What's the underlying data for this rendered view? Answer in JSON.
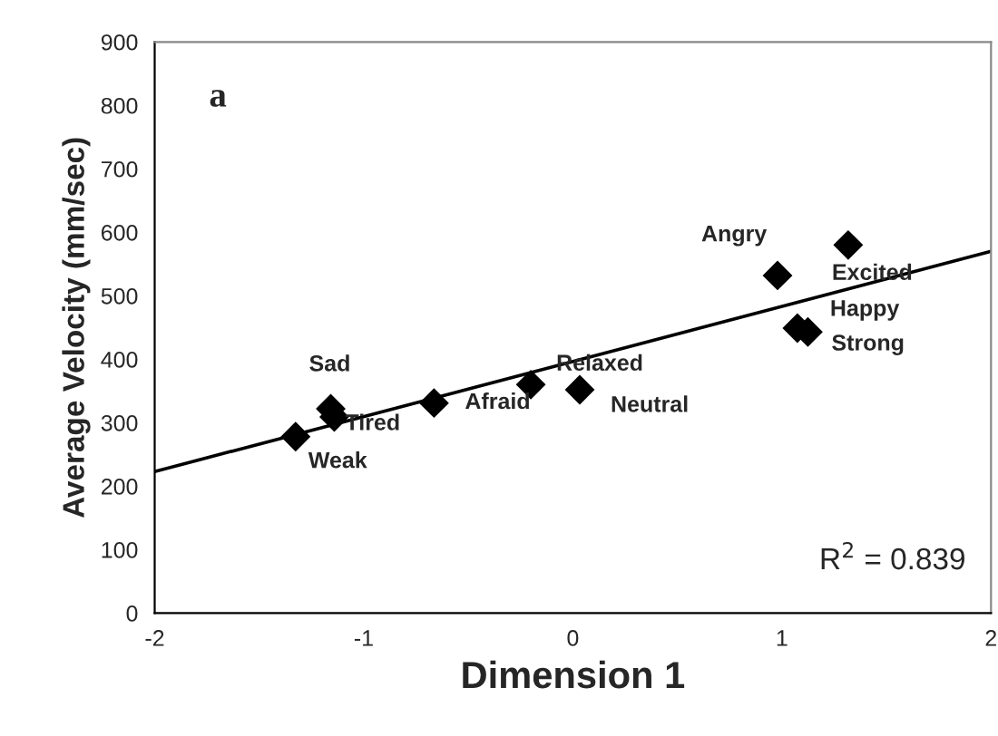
{
  "chart_data": {
    "type": "scatter",
    "title": "a",
    "xlabel": "Dimension 1",
    "ylabel": "Average Velocity (mm/sec)",
    "xlim": [
      -2,
      2
    ],
    "xticks": [
      -2,
      -1,
      0,
      1,
      2
    ],
    "ylim": [
      0,
      900
    ],
    "yticks": [
      0,
      100,
      200,
      300,
      400,
      500,
      600,
      700,
      800,
      900
    ],
    "grid": false,
    "legend": false,
    "series": [
      {
        "marker": "diamond",
        "color": "#000000",
        "x": [
          -1.326,
          -1.158,
          -1.141,
          -0.664,
          -0.201,
          0.033,
          0.979,
          1.317,
          1.074,
          1.124
        ],
        "values": [
          278,
          322,
          309,
          331,
          360,
          352,
          532,
          580,
          449,
          443
        ]
      },
      {
        "type": "line",
        "line_style": "solid",
        "marker": "none",
        "color": "#000000",
        "x": [
          -2,
          2
        ],
        "values": [
          223,
          570
        ]
      }
    ],
    "annotations": [
      {
        "text": "Weak",
        "x": -1.326,
        "y": 278
      },
      {
        "text": "Sad",
        "x": -1.158,
        "y": 322
      },
      {
        "text": "Tired",
        "x": -1.141,
        "y": 309
      },
      {
        "text": "Afraid",
        "x": -0.664,
        "y": 331
      },
      {
        "text": "Relaxed",
        "x": -0.201,
        "y": 360
      },
      {
        "text": "Neutral",
        "x": 0.033,
        "y": 352
      },
      {
        "text": "Angry",
        "x": 0.979,
        "y": 532
      },
      {
        "text": "Excited",
        "x": 1.317,
        "y": 580
      },
      {
        "text": "Happy",
        "x": 1.074,
        "y": 449
      },
      {
        "text": "Strong",
        "x": 1.124,
        "y": 443
      },
      "R$^{2}$ = 0.839"
    ]
  }
}
